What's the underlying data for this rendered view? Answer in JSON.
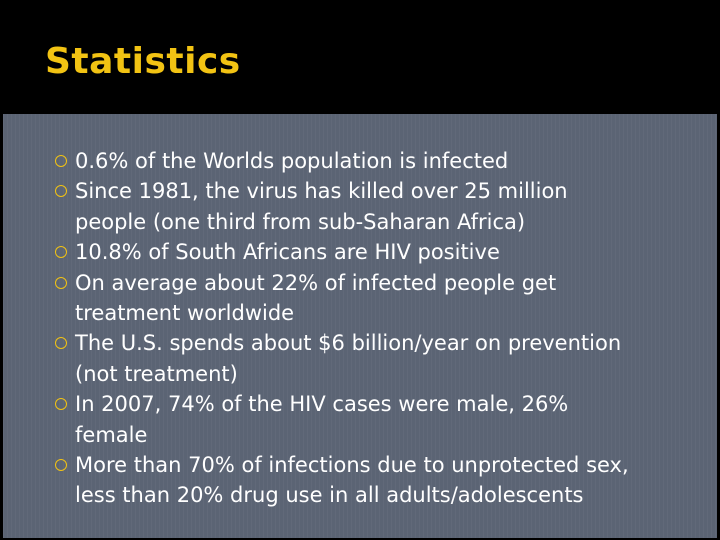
{
  "slide": {
    "title": "Statistics",
    "colors": {
      "title_bar": "#000000",
      "title_text": "#f2c313",
      "panel": "#5b6474",
      "bullet_marker": "#f2c313",
      "body_text": "#ffffff"
    },
    "bullet_icon": "circle-outline-icon",
    "bullets": [
      {
        "lines": [
          "0.6% of the Worlds population is infected"
        ]
      },
      {
        "lines": [
          "Since 1981, the virus has killed over 25 million",
          "people (one third from sub-Saharan Africa)"
        ]
      },
      {
        "lines": [
          "10.8% of South Africans are HIV positive"
        ]
      },
      {
        "lines": [
          "On average about 22% of infected people get",
          "treatment worldwide"
        ]
      },
      {
        "lines": [
          "The U.S. spends about $6 billion/year on prevention",
          "(not treatment)"
        ]
      },
      {
        "lines": [
          "In 2007, 74% of the HIV cases were male, 26%",
          "female"
        ]
      },
      {
        "lines": [
          "More than 70% of infections due to unprotected sex,",
          "less than 20% drug use in all adults/adolescents"
        ]
      }
    ]
  }
}
